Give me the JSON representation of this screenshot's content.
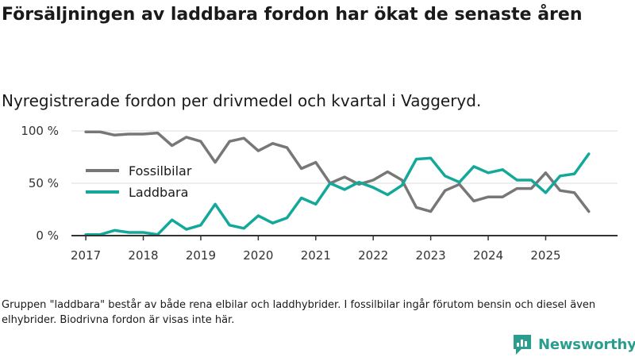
{
  "title": "Försäljningen av laddbara fordon har ökat de senaste åren",
  "subtitle": "Nyregistrerade fordon per drivmedel och kvartal i Vaggeryd.",
  "footnote": "Gruppen \"laddbara\" består av både rena elbilar och laddhybrider. I fossilbilar ingår förutom bensin och diesel även elhybrider. Biodrivna fordon är visas inte här.",
  "brand": {
    "name": "Newsworthy",
    "icon": "newsworthy-logo-icon"
  },
  "colors": {
    "fossil": "#777777",
    "laddbara": "#14a89a",
    "grid": "#dddddd",
    "axis": "#333333"
  },
  "chart_data": {
    "type": "line",
    "title": "Försäljningen av laddbara fordon har ökat de senaste åren",
    "xlabel": "",
    "ylabel": "",
    "ylim": [
      0,
      100
    ],
    "xlim": [
      2016.75,
      2026.25
    ],
    "yticks": [
      0,
      50,
      100
    ],
    "ytick_labels": [
      "0 %",
      "50 %",
      "100 %"
    ],
    "xticks": [
      2017,
      2018,
      2019,
      2020,
      2021,
      2022,
      2023,
      2024,
      2025
    ],
    "xtick_labels": [
      "2017",
      "2018",
      "2019",
      "2020",
      "2021",
      "2022",
      "2023",
      "2024",
      "2025"
    ],
    "legend_position": "middle-left",
    "grid": true,
    "x": [
      2017.0,
      2017.25,
      2017.5,
      2017.75,
      2018.0,
      2018.25,
      2018.5,
      2018.75,
      2019.0,
      2019.25,
      2019.5,
      2019.75,
      2020.0,
      2020.25,
      2020.5,
      2020.75,
      2021.0,
      2021.25,
      2021.5,
      2021.75,
      2022.0,
      2022.25,
      2022.5,
      2022.75,
      2023.0,
      2023.25,
      2023.5,
      2023.75,
      2024.0,
      2024.25,
      2024.5,
      2024.75,
      2025.0,
      2025.25,
      2025.5,
      2025.75
    ],
    "series": [
      {
        "name": "Fossilbilar",
        "color": "#777777",
        "values": [
          99,
          99,
          96,
          97,
          97,
          98,
          86,
          94,
          90,
          70,
          90,
          93,
          81,
          88,
          84,
          64,
          70,
          50,
          56,
          49,
          53,
          61,
          53,
          27,
          23,
          43,
          49,
          33,
          37,
          37,
          45,
          45,
          60,
          43,
          41,
          23
        ]
      },
      {
        "name": "Laddbara",
        "color": "#14a89a",
        "values": [
          1,
          1,
          5,
          3,
          3,
          1,
          15,
          6,
          10,
          30,
          10,
          7,
          19,
          12,
          17,
          36,
          30,
          50,
          44,
          51,
          46,
          39,
          48,
          73,
          74,
          57,
          51,
          66,
          60,
          63,
          53,
          53,
          41,
          57,
          59,
          78
        ]
      }
    ]
  }
}
